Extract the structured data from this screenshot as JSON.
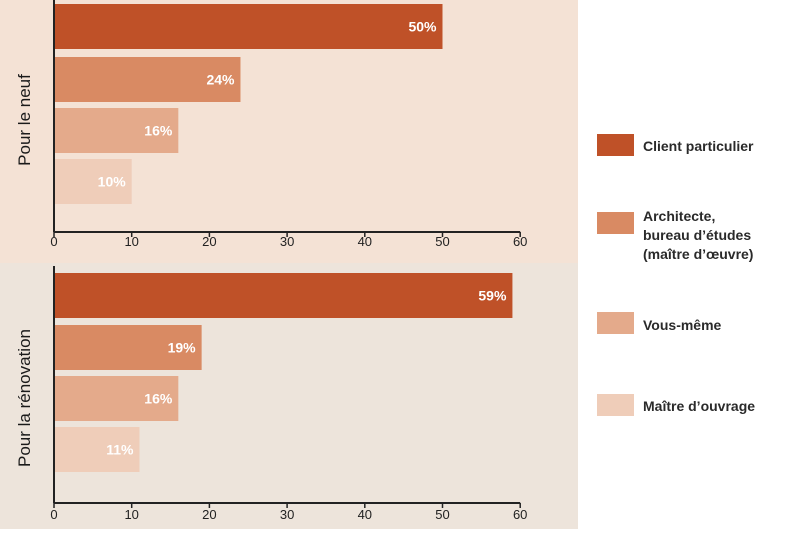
{
  "chart_data": {
    "type": "bar",
    "orientation": "horizontal",
    "xlim": [
      0,
      60
    ],
    "xticks": [
      0,
      10,
      20,
      30,
      40,
      50,
      60
    ],
    "legend_position": "right",
    "series": [
      {
        "name": "Client particulier",
        "color": "#bf5128"
      },
      {
        "name": "Architecte, bureau d’études (maître d’œuvre)",
        "name_lines": [
          "Architecte,",
          "bureau d’études",
          "(maître d’œuvre)"
        ],
        "color": "#d98a63"
      },
      {
        "name": "Vous-même",
        "color": "#e4aa8b"
      },
      {
        "name": "Maître d’ouvrage",
        "color": "#efcdb9"
      }
    ],
    "panels": [
      {
        "title": "Pour le neuf",
        "background": "#f4e2d5",
        "values": [
          50,
          24,
          16,
          10
        ],
        "labels": [
          "50%",
          "24%",
          "16%",
          "10%"
        ]
      },
      {
        "title": "Pour la rénovation",
        "background": "#ede4db",
        "values": [
          59,
          19,
          16,
          11
        ],
        "labels": [
          "59%",
          "19%",
          "16%",
          "11%"
        ]
      }
    ]
  }
}
